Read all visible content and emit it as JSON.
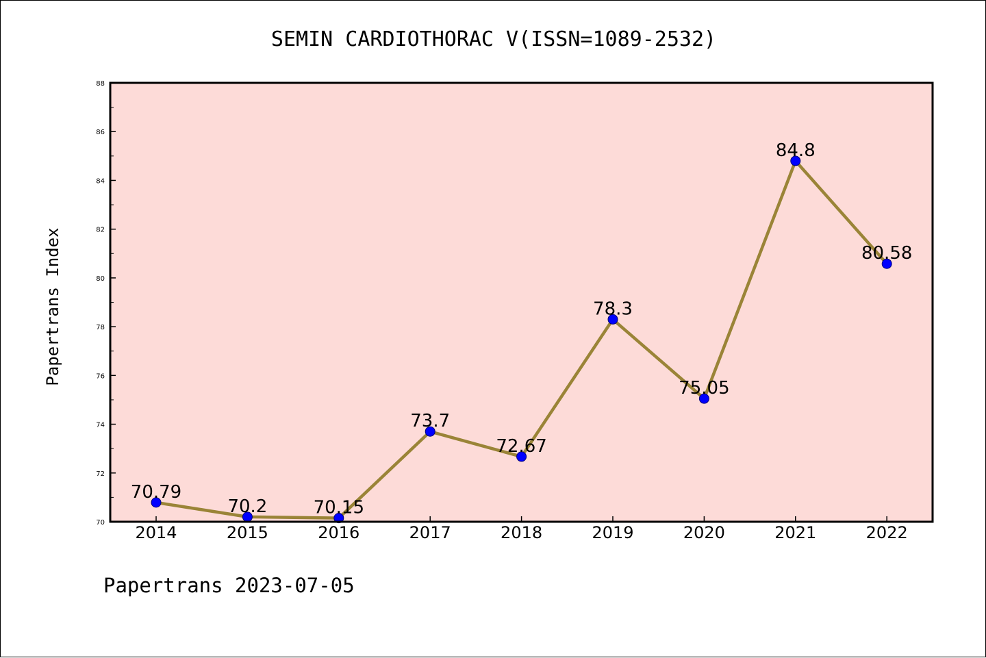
{
  "footer": "Papertrans 2023-07-05",
  "chart_data": {
    "type": "line",
    "title": "SEMIN CARDIOTHORAC V(ISSN=1089-2532)",
    "xlabel": "",
    "ylabel": "Papertrans Index",
    "categories": [
      "2014",
      "2015",
      "2016",
      "2017",
      "2018",
      "2019",
      "2020",
      "2021",
      "2022"
    ],
    "series": [
      {
        "values": [
          70.79,
          70.2,
          70.15,
          73.7,
          72.67,
          78.3,
          75.05,
          84.8,
          80.58
        ],
        "labels": [
          "70.79",
          "70.2",
          "70.15",
          "73.7",
          "72.67",
          "78.3",
          "75.05",
          "84.8",
          "80.58"
        ],
        "line_color": "#9a8437",
        "marker_color": "#0000ff"
      }
    ],
    "ylim": [
      70,
      88
    ],
    "yticks": [
      "70",
      "72",
      "74",
      "76",
      "78",
      "80",
      "82",
      "84",
      "86",
      "88"
    ],
    "plot_background": "#fddbd8",
    "grid": false,
    "legend": "none"
  }
}
